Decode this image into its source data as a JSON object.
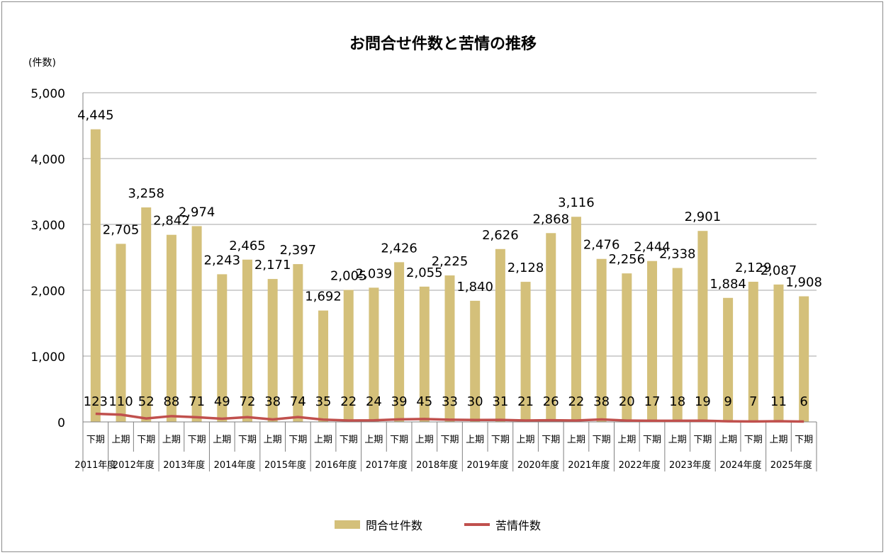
{
  "chart_data": {
    "type": "bar+line",
    "title": "お問合せ件数と苦情の推移",
    "ylabel": "(件数)",
    "ylim": [
      0,
      5000
    ],
    "yticks": [
      0,
      1000,
      2000,
      3000,
      4000,
      5000
    ],
    "ytick_labels": [
      "0",
      "1,000",
      "2,000",
      "3,000",
      "4,000",
      "5,000"
    ],
    "grid": true,
    "legend_position": "bottom",
    "periods": [
      "下期",
      "上期",
      "下期",
      "上期",
      "下期",
      "上期",
      "下期",
      "上期",
      "下期",
      "上期",
      "下期",
      "上期",
      "下期",
      "上期",
      "下期",
      "上期",
      "下期",
      "上期",
      "下期",
      "上期",
      "下期",
      "上期",
      "下期",
      "上期",
      "下期",
      "上期",
      "下期",
      "上期",
      "下期"
    ],
    "years": [
      {
        "label": "2011年度",
        "start": 0,
        "span": 1
      },
      {
        "label": "2012年度",
        "start": 1,
        "span": 2
      },
      {
        "label": "2013年度",
        "start": 3,
        "span": 2
      },
      {
        "label": "2014年度",
        "start": 5,
        "span": 2
      },
      {
        "label": "2015年度",
        "start": 7,
        "span": 2
      },
      {
        "label": "2016年度",
        "start": 9,
        "span": 2
      },
      {
        "label": "2017年度",
        "start": 11,
        "span": 2
      },
      {
        "label": "2018年度",
        "start": 13,
        "span": 2
      },
      {
        "label": "2019年度",
        "start": 15,
        "span": 2
      },
      {
        "label": "2020年度",
        "start": 17,
        "span": 2
      },
      {
        "label": "2021年度",
        "start": 19,
        "span": 2
      },
      {
        "label": "2022年度",
        "start": 21,
        "span": 2
      },
      {
        "label": "2023年度",
        "start": 23,
        "span": 2
      },
      {
        "label": "2024年度",
        "start": 25,
        "span": 2
      },
      {
        "label": "2025年度",
        "start": 27,
        "span": 2
      }
    ],
    "series": [
      {
        "name": "問合せ件数",
        "type": "bar",
        "color": "#d4c07a",
        "values": [
          4445,
          2705,
          3258,
          2842,
          2974,
          2243,
          2465,
          2171,
          2397,
          1692,
          2005,
          2039,
          2426,
          2055,
          2225,
          1840,
          2626,
          2128,
          2868,
          3116,
          2476,
          2256,
          2444,
          2338,
          2901,
          1884,
          2129,
          2087,
          1908
        ],
        "labels": [
          "4,445",
          "2,705",
          "3,258",
          "2,842",
          "2,974",
          "2,243",
          "2,465",
          "2,171",
          "2,397",
          "1,692",
          "2,005",
          "2,039",
          "2,426",
          "2,055",
          "2,225",
          "1,840",
          "2,626",
          "2,128",
          "2,868",
          "3,116",
          "2,476",
          "2,256",
          "2,444",
          "2,338",
          "2,901",
          "1,884",
          "2,129",
          "2,087",
          "1,908"
        ]
      },
      {
        "name": "苦情件数",
        "type": "line",
        "color": "#c0504d",
        "values": [
          123,
          110,
          52,
          88,
          71,
          49,
          72,
          38,
          74,
          35,
          22,
          24,
          39,
          45,
          33,
          30,
          31,
          21,
          26,
          22,
          38,
          20,
          17,
          18,
          19,
          9,
          7,
          11,
          6
        ],
        "labels": [
          "123",
          "110",
          "52",
          "88",
          "71",
          "49",
          "72",
          "38",
          "74",
          "35",
          "22",
          "24",
          "39",
          "45",
          "33",
          "30",
          "31",
          "21",
          "26",
          "22",
          "38",
          "20",
          "17",
          "18",
          "19",
          "9",
          "7",
          "11",
          "6"
        ]
      }
    ]
  },
  "legend": {
    "bar_label": "問合せ件数",
    "line_label": "苦情件数"
  }
}
